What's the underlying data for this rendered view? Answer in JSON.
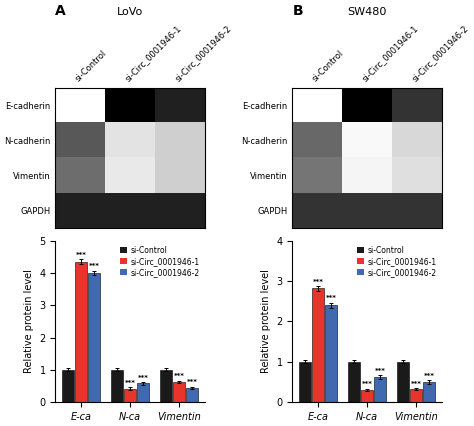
{
  "chart_data": [
    {
      "type": "heatmap",
      "title": "LoVo",
      "annotations": [
        "A"
      ],
      "x": [
        "si-Control",
        "si-Circ_0001946-1",
        "si-Circ_0001946-2"
      ],
      "y": [
        "E-cadherin",
        "N-cadherin",
        "Vimentin",
        "GAPDH"
      ],
      "cells": [
        [
          0.1,
          0.72,
          0.65
        ],
        [
          0.55,
          0.22,
          0.28
        ],
        [
          0.5,
          0.2,
          0.28
        ],
        [
          0.65,
          0.65,
          0.65
        ]
      ]
    },
    {
      "type": "bar",
      "categories": [
        "E-ca",
        "N-ca",
        "Vimentin"
      ],
      "ylabel": "Relative protein level",
      "ylim": [
        0,
        5
      ],
      "yticks": [
        0,
        1,
        2,
        3,
        4,
        5
      ],
      "legend": "upper right",
      "series": [
        {
          "name": "si-Control",
          "color": "#1a1a1a",
          "values": [
            1.0,
            1.0,
            1.0
          ],
          "errors": [
            0.05,
            0.05,
            0.05
          ]
        },
        {
          "name": "si-Circ_0001946-1",
          "color": "#e8342a",
          "values": [
            4.35,
            0.42,
            0.62
          ],
          "errors": [
            0.08,
            0.04,
            0.04
          ],
          "significance": [
            "***",
            "***",
            "***"
          ]
        },
        {
          "name": "si-Circ_0001946-2",
          "color": "#4169b0",
          "values": [
            4.0,
            0.58,
            0.45
          ],
          "errors": [
            0.07,
            0.04,
            0.03
          ],
          "significance": [
            "***",
            "***",
            "***"
          ]
        }
      ]
    },
    {
      "type": "heatmap",
      "title": "SW480",
      "annotations": [
        "B"
      ],
      "x": [
        "si-Control",
        "si-Circ_0001946-1",
        "si-Circ_0001946-2"
      ],
      "y": [
        "E-cadherin",
        "N-cadherin",
        "Vimentin",
        "GAPDH"
      ],
      "cells": [
        [
          0.15,
          0.75,
          0.65
        ],
        [
          0.55,
          0.18,
          0.3
        ],
        [
          0.52,
          0.2,
          0.28
        ],
        [
          0.65,
          0.65,
          0.65
        ]
      ]
    },
    {
      "type": "bar",
      "categories": [
        "E-ca",
        "N-ca",
        "Vimentin"
      ],
      "ylabel": "Relative protein level",
      "ylim": [
        0,
        4
      ],
      "yticks": [
        0,
        1,
        2,
        3,
        4
      ],
      "legend": "upper right",
      "series": [
        {
          "name": "si-Control",
          "color": "#1a1a1a",
          "values": [
            1.0,
            1.0,
            1.0
          ],
          "errors": [
            0.04,
            0.04,
            0.04
          ]
        },
        {
          "name": "si-Circ_0001946-1",
          "color": "#e8342a",
          "values": [
            2.82,
            0.3,
            0.32
          ],
          "errors": [
            0.06,
            0.03,
            0.03
          ],
          "significance": [
            "***",
            "***",
            "***"
          ]
        },
        {
          "name": "si-Circ_0001946-2",
          "color": "#4169b0",
          "values": [
            2.4,
            0.62,
            0.5
          ],
          "errors": [
            0.06,
            0.04,
            0.04
          ],
          "significance": [
            "***",
            "***",
            "***"
          ]
        }
      ]
    }
  ]
}
